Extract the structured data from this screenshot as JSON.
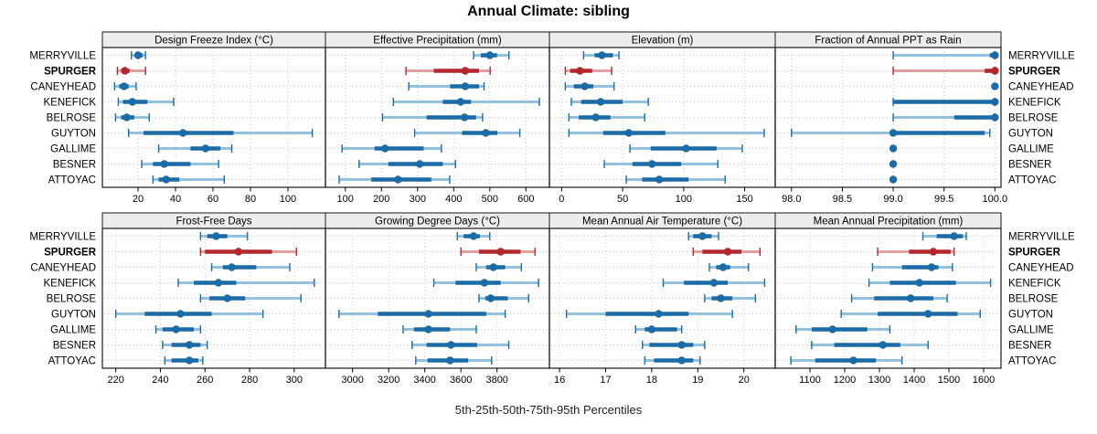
{
  "title": "Annual Climate: sibling",
  "caption": "5th-25th-50th-75th-95th Percentiles",
  "chart_data": {
    "type": "dot-interval",
    "description": "5th-25th-50th-75th-95th percentile intervals per site; light band p5-p95 with end caps, dark band p25-p75, dot at median",
    "sites": [
      "MERRYVILLE",
      "SPURGER",
      "CANEYHEAD",
      "KENEFICK",
      "BELROSE",
      "GUYTON",
      "GALLIME",
      "BESNER",
      "ATTOYAC"
    ],
    "highlight_site": "SPURGER",
    "colors": {
      "blue_dark": "#1a6ba6",
      "blue_light": "#94c1dd",
      "red_dark": "#b3282d",
      "red_light": "#e2a0a0",
      "strip_bg": "#ededed",
      "grid": "#c9c9c9",
      "border": "#1a1a1a"
    },
    "panels": [
      {
        "id": "dfi",
        "title": "Design Freeze Index (°C)",
        "row": 0,
        "col": 0,
        "domain": [
          1,
          120
        ],
        "ticks": [
          20,
          40,
          60,
          80,
          100
        ],
        "tick_labels": [
          "20",
          "40",
          "60",
          "80",
          "100"
        ],
        "values": {
          "MERRYVILLE": [
            16.5,
            18.5,
            20,
            22.5,
            24
          ],
          "SPURGER": [
            9,
            11,
            13,
            15.5,
            24
          ],
          "CANEYHEAD": [
            7.5,
            10,
            12.5,
            15,
            19
          ],
          "KENEFICK": [
            9.5,
            12,
            17,
            25,
            39
          ],
          "BELROSE": [
            8,
            11,
            14,
            18,
            26
          ],
          "GUYTON": [
            15,
            23,
            44,
            71,
            113
          ],
          "GALLIME": [
            31,
            48,
            56,
            64,
            70
          ],
          "BESNER": [
            22,
            28,
            34,
            48,
            63
          ],
          "ATTOYAC": [
            28,
            31,
            35,
            42,
            66
          ]
        }
      },
      {
        "id": "ep",
        "title": "Effective Precipitation (mm)",
        "row": 0,
        "col": 1,
        "domain": [
          45,
          665
        ],
        "ticks": [
          100,
          200,
          300,
          400,
          500,
          600
        ],
        "tick_labels": [
          "100",
          "200",
          "300",
          "400",
          "500",
          "600"
        ],
        "values": {
          "MERRYVILLE": [
            455,
            475,
            500,
            520,
            553
          ],
          "SPURGER": [
            268,
            345,
            432,
            470,
            501
          ],
          "CANEYHEAD": [
            276,
            390,
            432,
            470,
            484
          ],
          "KENEFICK": [
            233,
            370,
            419,
            448,
            637
          ],
          "BELROSE": [
            203,
            325,
            430,
            462,
            480
          ],
          "GUYTON": [
            292,
            423,
            489,
            521,
            583
          ],
          "GALLIME": [
            91,
            181,
            210,
            317,
            366
          ],
          "BESNER": [
            138,
            219,
            306,
            370,
            405
          ],
          "ATTOYAC": [
            83,
            172,
            246,
            338,
            389
          ]
        }
      },
      {
        "id": "elev",
        "title": "Elevation (m)",
        "row": 0,
        "col": 2,
        "domain": [
          -10,
          175
        ],
        "ticks": [
          0,
          50,
          100,
          150
        ],
        "tick_labels": [
          "0",
          "50",
          "100",
          "150"
        ],
        "values": {
          "MERRYVILLE": [
            18,
            27,
            33,
            42,
            47
          ],
          "SPURGER": [
            3,
            7,
            15,
            25,
            41
          ],
          "CANEYHEAD": [
            3,
            10,
            19,
            26,
            43
          ],
          "KENEFICK": [
            8,
            16,
            32,
            50,
            71
          ],
          "BELROSE": [
            6,
            14,
            28,
            40,
            68
          ],
          "GUYTON": [
            6,
            34,
            55,
            85,
            166
          ],
          "GALLIME": [
            56,
            73,
            102,
            127,
            148
          ],
          "BESNER": [
            35,
            58,
            74,
            98,
            128
          ],
          "ATTOYAC": [
            53,
            66,
            80,
            104,
            134
          ]
        }
      },
      {
        "id": "fppt",
        "title": "Fraction of Annual PPT as Rain",
        "row": 0,
        "col": 3,
        "domain": [
          97.84,
          100.06
        ],
        "ticks": [
          98.0,
          98.5,
          99.0,
          99.5,
          100.0
        ],
        "tick_labels": [
          "98.0",
          "98.5",
          "99.0",
          "99.5",
          "100.0"
        ],
        "values": {
          "MERRYVILLE": [
            99,
            99.95,
            100,
            100,
            100
          ],
          "SPURGER": [
            99,
            99.9,
            100,
            100,
            100
          ],
          "CANEYHEAD": [
            100,
            100,
            100,
            100,
            100
          ],
          "KENEFICK": [
            99,
            99,
            100,
            100,
            100
          ],
          "BELROSE": [
            99,
            99.6,
            100,
            100,
            100
          ],
          "GUYTON": [
            98,
            99,
            99,
            99.9,
            99.95
          ],
          "GALLIME": [
            99,
            99,
            99,
            99,
            99
          ],
          "BESNER": [
            99,
            99,
            99,
            99,
            99
          ],
          "ATTOYAC": [
            99,
            99,
            99,
            99,
            99
          ]
        }
      },
      {
        "id": "ffd",
        "title": "Frost-Free Days",
        "row": 1,
        "col": 0,
        "domain": [
          214,
          314
        ],
        "ticks": [
          220,
          240,
          260,
          280,
          300
        ],
        "tick_labels": [
          "220",
          "240",
          "260",
          "280",
          "300"
        ],
        "values": {
          "MERRYVILLE": [
            258,
            261,
            265,
            270,
            279
          ],
          "SPURGER": [
            258,
            260,
            275,
            290,
            301
          ],
          "CANEYHEAD": [
            263,
            268,
            272,
            283,
            298
          ],
          "KENEFICK": [
            248,
            255,
            266,
            274,
            309
          ],
          "BELROSE": [
            258,
            262,
            270,
            278,
            303
          ],
          "GUYTON": [
            220,
            233,
            249,
            263,
            286
          ],
          "GALLIME": [
            238,
            241,
            247,
            255,
            258
          ],
          "BESNER": [
            241,
            245,
            253,
            258,
            261
          ],
          "ATTOYAC": [
            242,
            245,
            253,
            257,
            259
          ]
        }
      },
      {
        "id": "gdd",
        "title": "Growing Degree Days (°C)",
        "row": 1,
        "col": 1,
        "domain": [
          2850,
          4090
        ],
        "ticks": [
          3000,
          3200,
          3400,
          3600,
          3800
        ],
        "tick_labels": [
          "3000",
          "3200",
          "3400",
          "3600",
          "3800"
        ],
        "values": {
          "MERRYVILLE": [
            3580,
            3615,
            3670,
            3705,
            3760
          ],
          "SPURGER": [
            3600,
            3700,
            3820,
            3930,
            4010
          ],
          "CANEYHEAD": [
            3685,
            3740,
            3780,
            3845,
            3935
          ],
          "KENEFICK": [
            3450,
            3570,
            3730,
            3820,
            4030
          ],
          "BELROSE": [
            3700,
            3735,
            3765,
            3860,
            3975
          ],
          "GUYTON": [
            2925,
            3140,
            3420,
            3740,
            3845
          ],
          "GALLIME": [
            3280,
            3340,
            3420,
            3540,
            3685
          ],
          "BESNER": [
            3330,
            3410,
            3545,
            3690,
            3865
          ],
          "ATTOYAC": [
            3350,
            3415,
            3540,
            3640,
            3770
          ]
        }
      },
      {
        "id": "maat",
        "title": "Mean Annual Air Temperature (°C)",
        "row": 1,
        "col": 2,
        "domain": [
          15.78,
          20.68
        ],
        "ticks": [
          16,
          17,
          18,
          19,
          20
        ],
        "tick_labels": [
          "16",
          "17",
          "18",
          "19",
          "20"
        ],
        "values": {
          "MERRYVILLE": [
            18.8,
            18.9,
            19.1,
            19.3,
            19.45
          ],
          "SPURGER": [
            18.9,
            19.1,
            19.65,
            19.95,
            20.35
          ],
          "CANEYHEAD": [
            19.25,
            19.4,
            19.55,
            19.7,
            20.1
          ],
          "KENEFICK": [
            18.25,
            18.7,
            19.35,
            19.65,
            20.45
          ],
          "BELROSE": [
            19.15,
            19.3,
            19.5,
            19.75,
            20.25
          ],
          "GUYTON": [
            16.15,
            17.0,
            18.15,
            18.8,
            19.75
          ],
          "GALLIME": [
            17.65,
            17.85,
            18.0,
            18.55,
            18.65
          ],
          "BESNER": [
            17.8,
            17.95,
            18.65,
            18.9,
            19.15
          ],
          "ATTOYAC": [
            17.85,
            18.05,
            18.65,
            18.9,
            19.05
          ]
        }
      },
      {
        "id": "map",
        "title": "Mean Annual Precipitation (mm)",
        "row": 1,
        "col": 3,
        "domain": [
          1000,
          1650
        ],
        "ticks": [
          1100,
          1200,
          1300,
          1400,
          1500,
          1600
        ],
        "tick_labels": [
          "1100",
          "1200",
          "1300",
          "1400",
          "1500",
          "1600"
        ],
        "values": {
          "MERRYVILLE": [
            1425,
            1465,
            1515,
            1540,
            1550
          ],
          "SPURGER": [
            1295,
            1385,
            1455,
            1505,
            1515
          ],
          "CANEYHEAD": [
            1280,
            1365,
            1450,
            1470,
            1510
          ],
          "KENEFICK": [
            1270,
            1330,
            1415,
            1520,
            1620
          ],
          "BELROSE": [
            1220,
            1285,
            1390,
            1455,
            1495
          ],
          "GUYTON": [
            1190,
            1295,
            1440,
            1525,
            1590
          ],
          "GALLIME": [
            1060,
            1105,
            1165,
            1265,
            1330
          ],
          "BESNER": [
            1105,
            1170,
            1310,
            1360,
            1440
          ],
          "ATTOYAC": [
            1045,
            1115,
            1225,
            1290,
            1365
          ]
        }
      }
    ]
  }
}
